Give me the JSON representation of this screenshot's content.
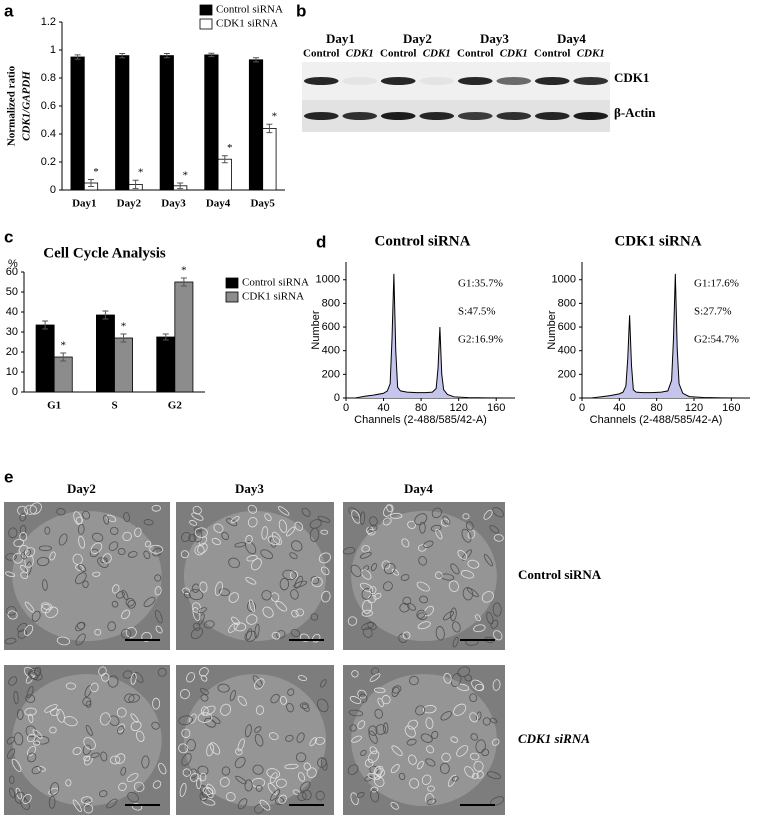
{
  "panel_labels": [
    "a",
    "b",
    "c",
    "d",
    "e"
  ],
  "chart_data": [
    {
      "type": "bar",
      "ylabel": [
        "Normalized ratio",
        "CDK1/GAPDH"
      ],
      "categories": [
        "Day1",
        "Day2",
        "Day3",
        "Day4",
        "Day5"
      ],
      "series": [
        {
          "name": "Control siRNA",
          "color": "#000000",
          "values": [
            0.95,
            0.96,
            0.96,
            0.965,
            0.93
          ],
          "errors": [
            0.015,
            0.015,
            0.015,
            0.012,
            0.015
          ]
        },
        {
          "name": "CDK1 siRNA",
          "color": "#ffffff",
          "values": [
            0.05,
            0.04,
            0.03,
            0.22,
            0.44
          ],
          "errors": [
            0.025,
            0.03,
            0.02,
            0.025,
            0.03
          ],
          "significance": [
            "*",
            "*",
            "*",
            "*",
            "*"
          ]
        }
      ],
      "ylim": [
        0,
        1.2
      ],
      "yticks": [
        0,
        0.2,
        0.4,
        0.6,
        0.8,
        1,
        1.2
      ],
      "legend": "top-right"
    },
    {
      "type": "bar",
      "title": "Cell Cycle Analysis",
      "ylabel": [
        "%"
      ],
      "categories": [
        "G1",
        "S",
        "G2"
      ],
      "series": [
        {
          "name": "Control siRNA",
          "color": "#000000",
          "values": [
            33.5,
            38.5,
            27.5
          ],
          "errors": [
            2,
            2,
            1.5
          ]
        },
        {
          "name": "CDK1 siRNA",
          "color": "#8c8c8c",
          "values": [
            17.5,
            27,
            55
          ],
          "errors": [
            2,
            2,
            2
          ],
          "significance": [
            "*",
            "*",
            "*"
          ]
        }
      ],
      "ylim": [
        0,
        60
      ],
      "yticks": [
        0,
        10,
        20,
        30,
        40,
        50,
        60
      ],
      "legend": "right"
    },
    {
      "type": "line",
      "title": "Control siRNA",
      "xlabel": "Channels (2-488/585/42-A)",
      "ylabel": "Number",
      "x": [
        10,
        20,
        30,
        40,
        44,
        47,
        49,
        51,
        53,
        55,
        58,
        65,
        75,
        85,
        92,
        96,
        98,
        100,
        102,
        104,
        108,
        115,
        130,
        150,
        170
      ],
      "series": [
        {
          "color": "#000000",
          "values": [
            0,
            15,
            25,
            40,
            60,
            120,
            500,
            1050,
            400,
            90,
            60,
            50,
            45,
            45,
            50,
            80,
            250,
            600,
            200,
            70,
            30,
            10,
            3,
            1,
            0
          ]
        }
      ],
      "xlim": [
        0,
        180
      ],
      "xticks": [
        0,
        40,
        80,
        120,
        160
      ],
      "ylim": [
        0,
        1150
      ],
      "yticks": [
        0,
        200,
        400,
        600,
        800,
        1000
      ],
      "annotations": [
        "G1:35.7%",
        "S:47.5%",
        "G2:16.9%"
      ]
    },
    {
      "type": "line",
      "title": "CDK1 siRNA",
      "xlabel": "Channels (2-488/585/42-A)",
      "ylabel": "Number",
      "x": [
        10,
        20,
        30,
        40,
        44,
        47,
        49,
        51,
        53,
        55,
        58,
        65,
        75,
        85,
        92,
        96,
        98,
        100,
        102,
        104,
        108,
        115,
        130,
        150,
        170
      ],
      "series": [
        {
          "color": "#000000",
          "values": [
            0,
            10,
            20,
            35,
            50,
            100,
            330,
            700,
            280,
            70,
            50,
            45,
            45,
            50,
            60,
            150,
            500,
            1050,
            420,
            120,
            40,
            12,
            4,
            1,
            0
          ]
        }
      ],
      "xlim": [
        0,
        180
      ],
      "xticks": [
        0,
        40,
        80,
        120,
        160
      ],
      "ylim": [
        0,
        1150
      ],
      "yticks": [
        0,
        200,
        400,
        600,
        800,
        1000
      ],
      "annotations": [
        "G1:17.6%",
        "S:27.7%",
        "G2:54.7%"
      ]
    }
  ],
  "blot": {
    "days": [
      "Day1",
      "Day2",
      "Day3",
      "Day4"
    ],
    "lanes": [
      "Control",
      "CDK1",
      "Control",
      "CDK1",
      "Control",
      "CDK1",
      "Control",
      "CDK1"
    ],
    "proteins": [
      "CDK1",
      "β-Actin"
    ]
  },
  "micrographs": {
    "columns": [
      "Day2",
      "Day3",
      "Day4"
    ],
    "rows": [
      "Control siRNA",
      "CDK1 siRNA"
    ]
  }
}
